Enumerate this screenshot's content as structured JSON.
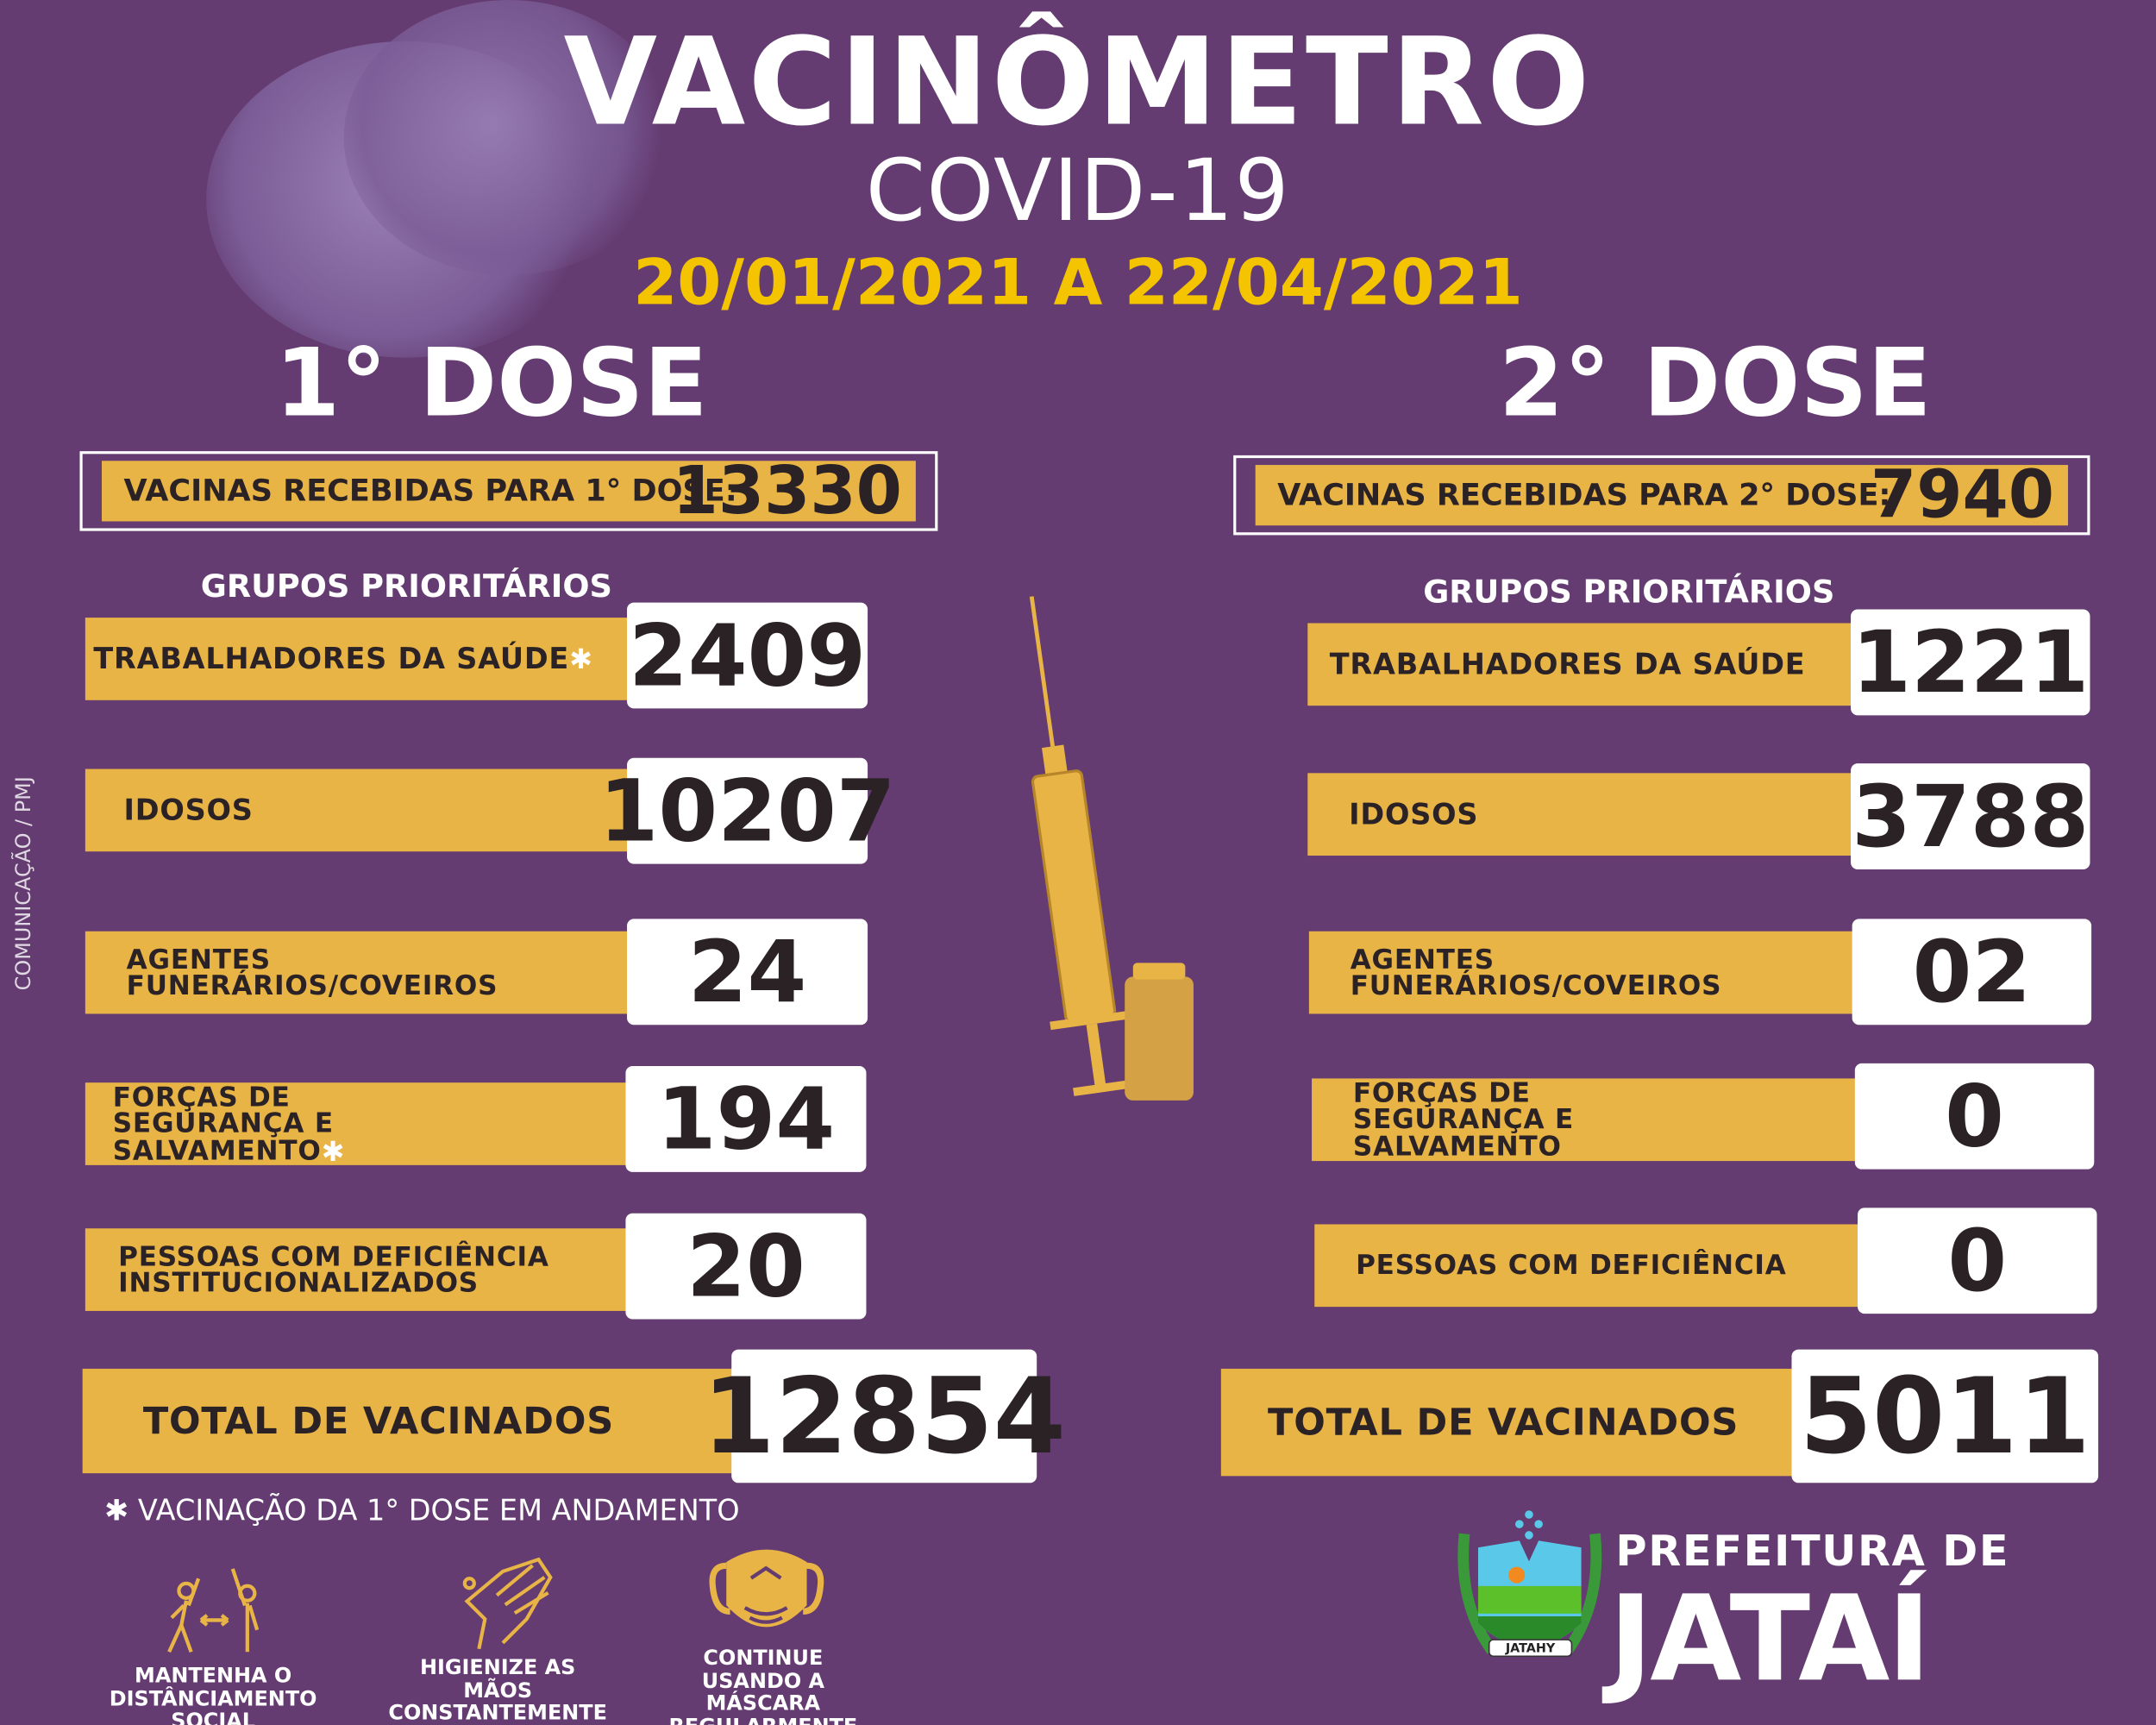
{
  "header": {
    "title": "VACINÔMETRO",
    "subtitle": "COVID-19",
    "period": "20/01/2021 A 22/04/2021"
  },
  "credit": "COMUNICAÇÃO / PMJ",
  "colors": {
    "background": "#643c72",
    "accent": "#e8b446",
    "text_dark": "#2b2226",
    "date": "#f5c400"
  },
  "dose1": {
    "heading": "1° DOSE",
    "received_label": "VACINAS RECEBIDAS PARA 1° DOSE:",
    "received_value": "13330",
    "groups_title": "GRUPOS PRIORITÁRIOS",
    "rows": [
      {
        "label": "TRABALHADORES DA SAÚDE",
        "star": "✱",
        "value": "2409"
      },
      {
        "label": "IDOSOS",
        "star": "",
        "value": "10207"
      },
      {
        "label": "AGENTES FUNERÁRIOS/COVEIROS",
        "star": "",
        "value": "24"
      },
      {
        "label": "FORÇAS DE SEGURANÇA E SALVAMENTO",
        "star": "✱",
        "value": "194"
      },
      {
        "label": "PESSOAS COM DEFICIÊNCIA INSTITUCIONALIZADOS",
        "star": "",
        "value": "20"
      }
    ],
    "total_label": "TOTAL DE VACINADOS",
    "total_value": "12854"
  },
  "dose2": {
    "heading": "2° DOSE",
    "received_label": "VACINAS RECEBIDAS PARA 2° DOSE:",
    "received_value": "7940",
    "groups_title": "GRUPOS PRIORITÁRIOS",
    "rows": [
      {
        "label": "TRABALHADORES DA SAÚDE",
        "value": "1221"
      },
      {
        "label": "IDOSOS",
        "value": "3788"
      },
      {
        "label": "AGENTES FUNERÁRIOS/COVEIROS",
        "value": "02"
      },
      {
        "label": "FORÇAS DE SEGURANÇA E SALVAMENTO",
        "value": "0"
      },
      {
        "label": "PESSOAS COM DEFICIÊNCIA",
        "value": "0"
      }
    ],
    "total_label": "TOTAL DE VACINADOS",
    "total_value": "5011"
  },
  "footnote": {
    "symbol": "✱",
    "text": "VACINAÇÃO DA 1° DOSE EM ANDAMENTO"
  },
  "tips": [
    {
      "icon": "social-distancing-icon",
      "text": "MANTENHA O DISTÂNCIAMENTO SOCIAL"
    },
    {
      "icon": "hand-washing-icon",
      "text": "HIGIENIZE AS MÃOS CONSTANTEMENTE"
    },
    {
      "icon": "face-mask-icon",
      "text": "CONTINUE USANDO A MÁSCARA REGULARMENTE"
    }
  ],
  "logo": {
    "line1": "PREFEITURA DE",
    "line2": "JATAÍ",
    "crest_text": "JATAHY"
  }
}
